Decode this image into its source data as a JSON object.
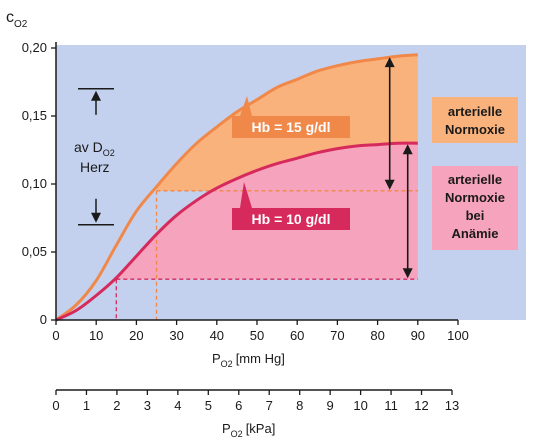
{
  "chart_data": {
    "type": "line",
    "ylabel": "c",
    "ylabel_sub": "O2",
    "xlabel_mmhg": "P",
    "xlabel_mmhg_sub": "O2",
    "xlabel_mmhg_unit": "[mm Hg]",
    "xlabel_kpa": "P",
    "xlabel_kpa_sub": "O2",
    "xlabel_kpa_unit": "[kPa]",
    "xlim_mmhg": [
      0,
      100
    ],
    "ylim": [
      0,
      0.2
    ],
    "x_ticks_mmhg": [
      "0",
      "10",
      "20",
      "30",
      "40",
      "50",
      "60",
      "70",
      "80",
      "90",
      "100"
    ],
    "x_ticks_kpa": [
      "0",
      "1",
      "2",
      "3",
      "4",
      "5",
      "6",
      "7",
      "8",
      "9",
      "10",
      "11",
      "12",
      "13"
    ],
    "y_ticks": [
      "0",
      "0,05",
      "0,10",
      "0,15",
      "0,20"
    ],
    "series": [
      {
        "name": "Hb = 15 g/dl",
        "color": "#f0884a",
        "x": [
          0,
          5,
          10,
          15,
          20,
          25,
          30,
          35,
          40,
          45,
          50,
          55,
          60,
          65,
          70,
          75,
          80,
          85,
          90
        ],
        "y": [
          0,
          0.011,
          0.029,
          0.055,
          0.08,
          0.098,
          0.115,
          0.13,
          0.142,
          0.153,
          0.162,
          0.171,
          0.177,
          0.183,
          0.187,
          0.19,
          0.192,
          0.194,
          0.195
        ]
      },
      {
        "name": "Hb = 10 g/dl",
        "color": "#d62a5c",
        "x": [
          0,
          5,
          10,
          15,
          20,
          25,
          30,
          35,
          40,
          45,
          50,
          55,
          60,
          65,
          70,
          75,
          80,
          85,
          90
        ],
        "y": [
          0,
          0.007,
          0.018,
          0.031,
          0.047,
          0.063,
          0.077,
          0.088,
          0.097,
          0.104,
          0.11,
          0.115,
          0.119,
          0.123,
          0.126,
          0.128,
          0.129,
          0.13,
          0.13
        ]
      }
    ],
    "guides": {
      "venous_mmhg_normal": 25,
      "venous_c_normal": 0.095,
      "venous_mmhg_anemia": 15,
      "venous_c_anemia": 0.03,
      "arterial_mmhg": 90
    },
    "annotations": {
      "avd_label_line1": "av D",
      "avd_label_sub": "O2",
      "avd_label_line2": "Herz",
      "avd_range": [
        0.07,
        0.17
      ],
      "arterial_arrow_x_mmhg": 85,
      "box_normoxie": [
        "arterielle",
        "Normoxie"
      ],
      "box_anemia": [
        "arterielle",
        "Normoxie",
        "bei",
        "Anämie"
      ],
      "colors": {
        "background": "#c3d1ef",
        "normoxie_fill": "#f9b27c",
        "anemia_fill": "#f6a3bd",
        "normoxie_label": "#f0884a",
        "anemia_label": "#d62a5c"
      }
    }
  }
}
